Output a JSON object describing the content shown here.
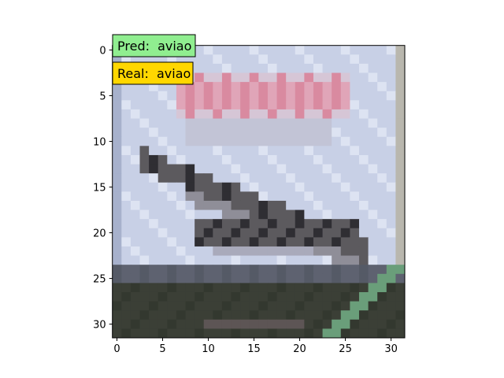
{
  "labels": {
    "pred_prefix": "Pred:",
    "pred_value": "aviao",
    "real_prefix": "Real:",
    "real_value": "aviao",
    "pred_color": "#90ee90",
    "real_color": "#ffd700"
  },
  "axes": {
    "x_ticks": [
      "0",
      "5",
      "10",
      "15",
      "20",
      "25",
      "30"
    ],
    "y_ticks": [
      "0",
      "5",
      "10",
      "15",
      "20",
      "25",
      "30"
    ],
    "image_size": [
      32,
      32
    ]
  },
  "image": {
    "subject": "airplane (concorde-like jet) on light blue background, low-resolution 32x32 pixel image",
    "palette": {
      "sky": "#c8d0e6",
      "sky_light": "#dde3f2",
      "red_text": "#d98aa0",
      "plane": "#5c5a5e",
      "plane_dark": "#2f2e33",
      "ground_top": "#5e6270",
      "ground": "#3b3f36",
      "grass": "#6a9e7a",
      "frame_left": "#a7b1cc",
      "frame_right": "#b9b7ae"
    }
  }
}
